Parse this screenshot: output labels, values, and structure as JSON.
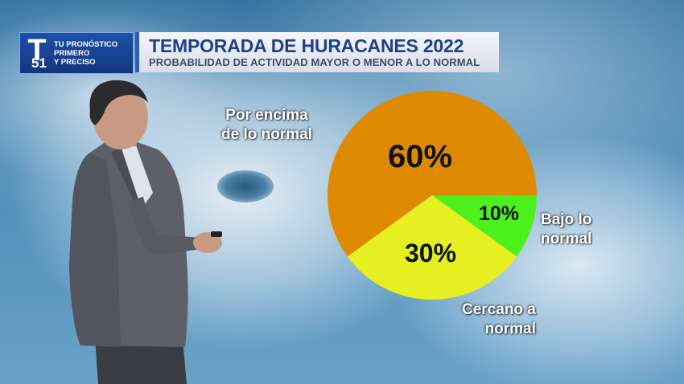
{
  "header": {
    "logo_letter": "T",
    "logo_number": "51",
    "logo_tagline_1": "TU PRONÓSTICO",
    "logo_tagline_2": "PRIMERO",
    "logo_tagline_3": "Y PRECISO",
    "accent_color": "#1d3f8c"
  },
  "chart_data": {
    "type": "pie",
    "title": "TEMPORADA DE HURACANES 2022",
    "subtitle": "PROBABILIDAD DE ACTIVIDAD MAYOR O MENOR A LO NORMAL",
    "slices": [
      {
        "label_line1": "Por encima",
        "label_line2": "de lo normal",
        "value": 60,
        "value_label": "60%",
        "color": "#de8a00"
      },
      {
        "label_line1": "Bajo lo",
        "label_line2": "normal",
        "value": 10,
        "value_label": "10%",
        "color": "#4cf01c"
      },
      {
        "label_line1": "Cercano a",
        "label_line2": "normal",
        "value": 30,
        "value_label": "30%",
        "color": "#e6f020"
      }
    ],
    "legend": "none"
  }
}
